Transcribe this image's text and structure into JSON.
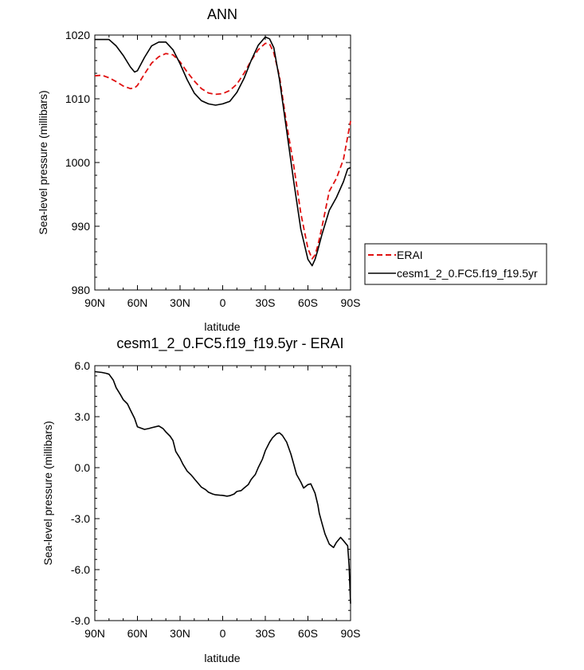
{
  "chart_data": [
    {
      "type": "line",
      "title": "ANN",
      "xlabel": "latitude",
      "ylabel": "Sea-level pressure (millibars)",
      "xlim": [
        90,
        -90
      ],
      "ylim": [
        980,
        1020
      ],
      "xticks": [
        {
          "value": 90,
          "label": "90N"
        },
        {
          "value": 60,
          "label": "60N"
        },
        {
          "value": 30,
          "label": "30N"
        },
        {
          "value": 0,
          "label": "0"
        },
        {
          "value": -30,
          "label": "30S"
        },
        {
          "value": -60,
          "label": "60S"
        },
        {
          "value": -90,
          "label": "90S"
        }
      ],
      "yticks": [
        {
          "value": 1020,
          "label": "1020"
        },
        {
          "value": 1010,
          "label": "1010"
        },
        {
          "value": 1000,
          "label": "1000"
        },
        {
          "value": 990,
          "label": "990"
        },
        {
          "value": 980,
          "label": "980"
        }
      ],
      "legend_position": "right, outside",
      "series": [
        {
          "name": "ERAI",
          "color": "#e01010",
          "style": "dashed",
          "x": [
            90,
            85,
            80,
            75,
            70,
            65,
            62,
            60,
            55,
            50,
            45,
            40,
            35,
            30,
            25,
            20,
            15,
            10,
            5,
            0,
            -5,
            -10,
            -15,
            -20,
            -25,
            -30,
            -33,
            -36,
            -40,
            -45,
            -50,
            -55,
            -60,
            -63,
            -65,
            -67,
            -70,
            -75,
            -80,
            -85,
            -90
          ],
          "y": [
            1013.6,
            1013.7,
            1013.3,
            1012.7,
            1012.0,
            1011.6,
            1011.7,
            1012.1,
            1013.9,
            1015.6,
            1016.6,
            1017.1,
            1016.9,
            1015.8,
            1014.2,
            1012.8,
            1011.6,
            1010.9,
            1010.7,
            1010.8,
            1011.3,
            1012.3,
            1014.0,
            1016.0,
            1017.7,
            1018.7,
            1018.6,
            1017.2,
            1013.5,
            1006.0,
            999.5,
            992.0,
            986.5,
            984.9,
            985.5,
            987.0,
            990.0,
            995.5,
            997.5,
            1000.5,
            1006.5
          ]
        },
        {
          "name": "cesm1_2_0.FC5.f19_f19.5yr",
          "color": "#000000",
          "style": "solid",
          "x": [
            90,
            85,
            80,
            75,
            70,
            65,
            62,
            60,
            55,
            50,
            45,
            40,
            35,
            30,
            25,
            20,
            15,
            10,
            5,
            0,
            -5,
            -10,
            -15,
            -20,
            -25,
            -30,
            -33,
            -36,
            -40,
            -45,
            -50,
            -55,
            -60,
            -63,
            -65,
            -67,
            -70,
            -75,
            -80,
            -85,
            -88,
            -90
          ],
          "y": [
            1019.3,
            1019.3,
            1019.3,
            1018.3,
            1016.8,
            1015.0,
            1014.2,
            1014.4,
            1016.5,
            1018.3,
            1018.9,
            1018.9,
            1017.7,
            1015.5,
            1013.0,
            1010.9,
            1009.7,
            1009.2,
            1009.0,
            1009.2,
            1009.6,
            1011.0,
            1013.2,
            1016.0,
            1018.4,
            1019.7,
            1019.4,
            1018.0,
            1013.0,
            1005.0,
            997.0,
            989.5,
            984.8,
            983.8,
            984.8,
            986.3,
            988.8,
            992.5,
            994.5,
            997.0,
            999.0,
            999.2
          ]
        }
      ]
    },
    {
      "type": "line",
      "title": "cesm1_2_0.FC5.f19_f19.5yr - ERAI",
      "xlabel": "latitude",
      "ylabel": "Sea-level pressure (millibars)",
      "xlim": [
        90,
        -90
      ],
      "ylim": [
        -9,
        6
      ],
      "xticks": [
        {
          "value": 90,
          "label": "90N"
        },
        {
          "value": 60,
          "label": "60N"
        },
        {
          "value": 30,
          "label": "30N"
        },
        {
          "value": 0,
          "label": "0"
        },
        {
          "value": -30,
          "label": "30S"
        },
        {
          "value": -60,
          "label": "60S"
        },
        {
          "value": -90,
          "label": "90S"
        }
      ],
      "yticks": [
        {
          "value": 6,
          "label": "6.0"
        },
        {
          "value": 3,
          "label": "3.0"
        },
        {
          "value": 0,
          "label": "0.0"
        },
        {
          "value": -3,
          "label": "-3.0"
        },
        {
          "value": -6,
          "label": "-6.0"
        },
        {
          "value": -9,
          "label": "-9.0"
        }
      ],
      "series": [
        {
          "color": "#000000",
          "style": "solid",
          "x": [
            90,
            85,
            82,
            80,
            77,
            75,
            72,
            70,
            67,
            65,
            62,
            60,
            55,
            52,
            50,
            45,
            42,
            40,
            37,
            35,
            33,
            30,
            28,
            25,
            22,
            20,
            18,
            15,
            12,
            10,
            7,
            5,
            2,
            0,
            -3,
            -5,
            -8,
            -10,
            -13,
            -15,
            -18,
            -20,
            -23,
            -25,
            -28,
            -30,
            -33,
            -35,
            -38,
            -40,
            -42,
            -45,
            -48,
            -50,
            -52,
            -55,
            -57,
            -60,
            -62,
            -65,
            -67,
            -68,
            -70,
            -72,
            -75,
            -78,
            -80,
            -83,
            -85,
            -88,
            -89,
            -90
          ],
          "y": [
            5.65,
            5.6,
            5.55,
            5.5,
            5.15,
            4.7,
            4.3,
            4.0,
            3.75,
            3.4,
            2.9,
            2.4,
            2.25,
            2.3,
            2.35,
            2.45,
            2.3,
            2.1,
            1.85,
            1.6,
            0.95,
            0.55,
            0.2,
            -0.2,
            -0.45,
            -0.65,
            -0.85,
            -1.15,
            -1.3,
            -1.45,
            -1.55,
            -1.6,
            -1.62,
            -1.63,
            -1.68,
            -1.65,
            -1.55,
            -1.4,
            -1.35,
            -1.2,
            -1.0,
            -0.7,
            -0.4,
            0.0,
            0.5,
            1.0,
            1.5,
            1.75,
            2.0,
            2.05,
            1.9,
            1.5,
            0.8,
            0.2,
            -0.4,
            -0.85,
            -1.2,
            -1.0,
            -0.95,
            -1.5,
            -2.2,
            -2.7,
            -3.3,
            -3.9,
            -4.5,
            -4.7,
            -4.4,
            -4.1,
            -4.3,
            -4.6,
            -5.8,
            -8.0
          ]
        }
      ]
    }
  ]
}
